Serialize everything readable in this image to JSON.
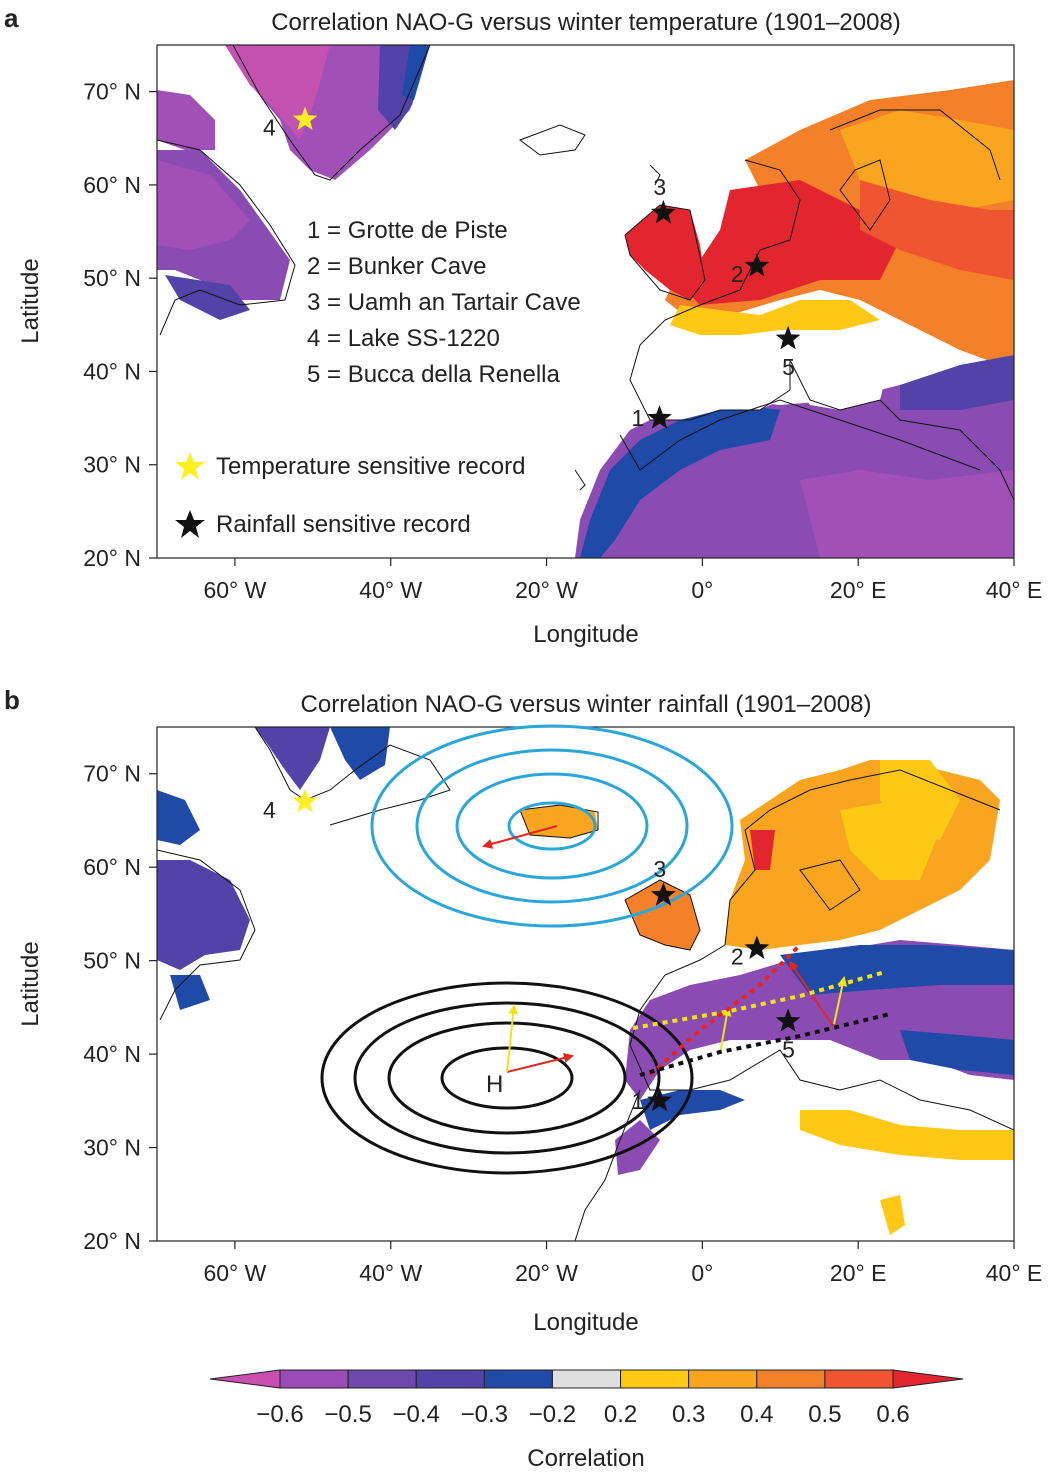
{
  "panels": [
    {
      "letter": "a",
      "title": "Correlation NAO-G versus winter temperature (1901–2008)",
      "xlabel": "Longitude",
      "ylabel": "Latitude",
      "lon_ticks": [
        "60° W",
        "40° W",
        "20° W",
        "0°",
        "20° E",
        "40° E"
      ],
      "lat_ticks": [
        "20° N",
        "30° N",
        "40° N",
        "50° N",
        "60° N",
        "70° N"
      ],
      "site_key": [
        "1 = Grotte de Piste",
        "2 = Bunker Cave",
        "3 = Uamh an Tartair Cave",
        "4 = Lake SS-1220",
        "5 = Bucca della Renella"
      ],
      "marker_legend": {
        "temperature": "Temperature sensitive record",
        "rainfall": "Rainfall sensitive record"
      }
    },
    {
      "letter": "b",
      "title": "Correlation NAO-G versus winter rainfall (1901–2008)",
      "xlabel": "Longitude",
      "ylabel": "Latitude",
      "lon_ticks": [
        "60° W",
        "40° W",
        "20° W",
        "0°",
        "20° E",
        "40° E"
      ],
      "lat_ticks": [
        "20° N",
        "30° N",
        "40° N",
        "50° N",
        "60° N",
        "70° N"
      ],
      "high_label": "H"
    }
  ],
  "sites": [
    {
      "num": "1",
      "lon": -5.5,
      "lat": 35,
      "type": "rainfall"
    },
    {
      "num": "2",
      "lon": 7,
      "lat": 51.3,
      "type": "rainfall"
    },
    {
      "num": "3",
      "lon": -5,
      "lat": 57,
      "type": "rainfall"
    },
    {
      "num": "4",
      "lon": -51,
      "lat": 67,
      "type": "temperature"
    },
    {
      "num": "5",
      "lon": 11,
      "lat": 43.5,
      "type": "rainfall"
    }
  ],
  "colorbar": {
    "label": "Correlation",
    "tick_labels": [
      "−0.6",
      "−0.5",
      "−0.4",
      "−0.3",
      "−0.2",
      "0.2",
      "0.3",
      "0.4",
      "0.5",
      "0.6"
    ],
    "colors": [
      "#c94fb0",
      "#9a4bb5",
      "#7048ad",
      "#5343a8",
      "#1f4aa8",
      "#dedede",
      "#ffc814",
      "#f9a51f",
      "#f4802a",
      "#ee5530",
      "#e32530"
    ]
  },
  "colors": {
    "temperature_star": "#ffee22",
    "rainfall_star": "#111111",
    "low_pressure": "#2aa6d9",
    "high_pressure": "#111111",
    "arrow_red": "#e52421",
    "arrow_yellow": "#f2e21a"
  }
}
